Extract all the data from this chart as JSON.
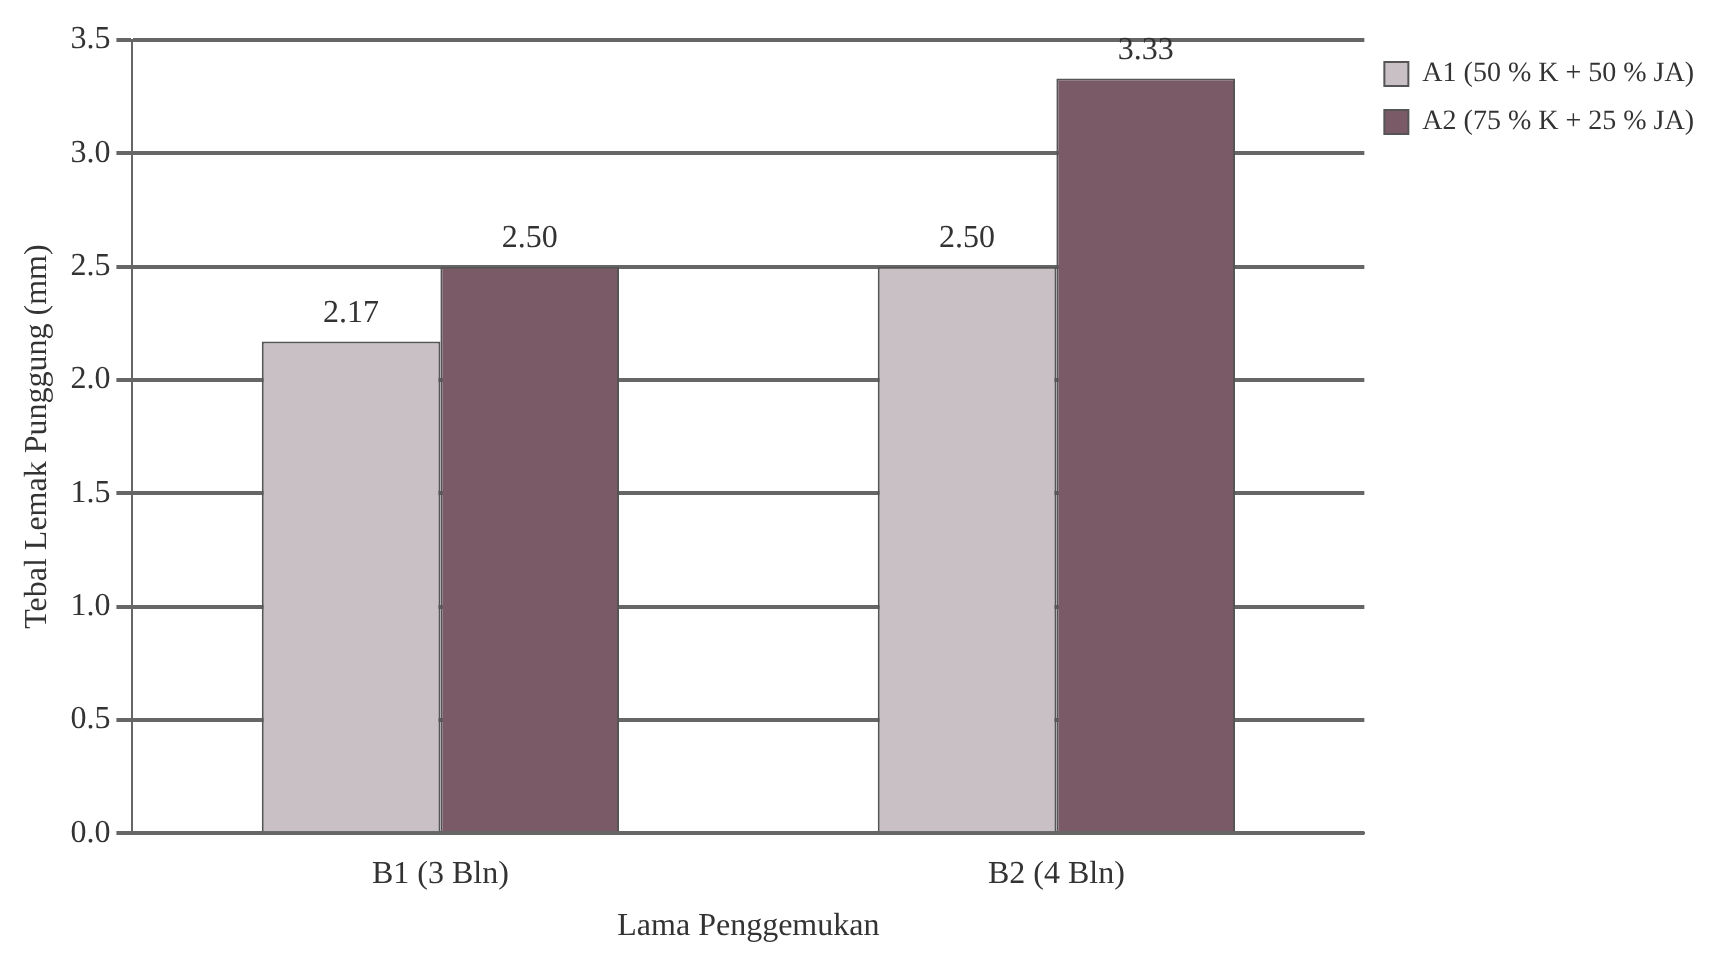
{
  "chart_data": {
    "type": "bar",
    "xlabel": "Lama Penggemukan",
    "ylabel": "Tebal Lemak Punggung (mm)",
    "categories": [
      "B1 (3 Bln)",
      "B2 (4 Bln)"
    ],
    "series": [
      {
        "name": "A1 (50 % K + 50 % JA)",
        "color": "#c8c0c4",
        "values": [
          2.17,
          2.5
        ],
        "value_labels": [
          "2.17",
          "2.50"
        ]
      },
      {
        "name": "A2 (75 % K + 25 % JA)",
        "color": "#7a5a66",
        "values": [
          2.5,
          3.33
        ],
        "value_labels": [
          "2.50",
          "3.33"
        ]
      }
    ],
    "ylim": [
      0,
      3.5
    ],
    "yticks": [
      {
        "value": 0,
        "label": "0.0"
      },
      0.5,
      {
        "value": 1,
        "label": "1.0"
      },
      1.5,
      {
        "value": 2,
        "label": "2.0"
      },
      2.5,
      {
        "value": 3,
        "label": "3.0"
      },
      3.5
    ],
    "grid": "y",
    "legend": "top right"
  }
}
